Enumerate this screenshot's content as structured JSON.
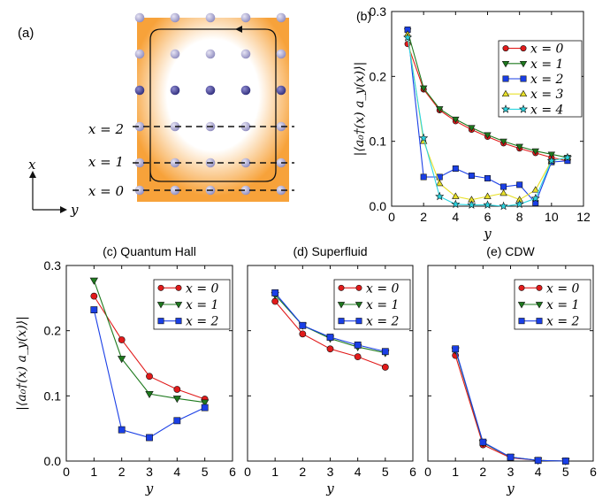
{
  "panel_a": {
    "label": "(a)",
    "row_labels": [
      "x = 2",
      "x = 1",
      "x = 0"
    ],
    "axis_x_label": "x",
    "axis_y_label": "y",
    "colors": {
      "background": "#F7A23A",
      "center": "#FFFFFF",
      "atom_light": "#9B98C7",
      "atom_dark": "#3A3886"
    }
  },
  "series_colors": [
    "#E11A1A",
    "#1E7A1E",
    "#1A3FE6",
    "#E8E029",
    "#2BD4E0"
  ],
  "legend_labels": [
    "x = 0",
    "x = 1",
    "x = 2",
    "x = 3",
    "x = 4"
  ],
  "chart_data": [
    {
      "id": "b",
      "type": "line",
      "panel_label": "(b)",
      "title": "",
      "xlabel": "y",
      "ylabel": "|⟨a₀†(x) a_y(x)⟩|",
      "xlim": [
        0,
        12
      ],
      "ylim": [
        0,
        0.3
      ],
      "xticks": [
        0,
        2,
        4,
        6,
        8,
        10,
        12
      ],
      "yticks": [
        0,
        0.1,
        0.2,
        0.3
      ],
      "ytick_labels": [
        "0.0",
        "0.1",
        "0.2",
        "0.3"
      ],
      "series": [
        {
          "name": "x = 0",
          "marker": "circle",
          "x": [
            1,
            2,
            3,
            4,
            5,
            6,
            7,
            8,
            9,
            10,
            11
          ],
          "y": [
            0.25,
            0.18,
            0.148,
            0.131,
            0.118,
            0.107,
            0.097,
            0.089,
            0.082,
            0.075,
            0.07
          ]
        },
        {
          "name": "x = 1",
          "marker": "tri-down",
          "x": [
            1,
            2,
            3,
            4,
            5,
            6,
            7,
            8,
            9,
            10,
            11
          ],
          "y": [
            0.27,
            0.182,
            0.15,
            0.134,
            0.121,
            0.11,
            0.1,
            0.092,
            0.085,
            0.08,
            0.075
          ]
        },
        {
          "name": "x = 2",
          "marker": "square",
          "x": [
            1,
            2,
            3,
            4,
            5,
            6,
            7,
            8,
            9,
            10,
            11
          ],
          "y": [
            0.272,
            0.045,
            0.045,
            0.058,
            0.047,
            0.043,
            0.03,
            0.033,
            0.005,
            0.068,
            0.07
          ]
        },
        {
          "name": "x = 3",
          "marker": "tri-up",
          "x": [
            1,
            2,
            3,
            4,
            5,
            6,
            7,
            8,
            9,
            10,
            11
          ],
          "y": [
            0.265,
            0.1,
            0.035,
            0.015,
            0.01,
            0.015,
            0.02,
            0.01,
            0.025,
            0.07,
            0.075
          ]
        },
        {
          "name": "x = 4",
          "marker": "star",
          "x": [
            1,
            2,
            3,
            4,
            5,
            6,
            7,
            8,
            9,
            10,
            11
          ],
          "y": [
            0.26,
            0.105,
            0.015,
            0.003,
            0.002,
            0.002,
            0.0,
            0.003,
            0.012,
            0.07,
            0.075
          ]
        }
      ]
    },
    {
      "id": "c",
      "type": "line",
      "title": "(c) Quantum Hall",
      "xlabel": "y",
      "ylabel": "|⟨a₀†(x) a_y(x)⟩|",
      "xlim": [
        0,
        6
      ],
      "ylim": [
        0,
        0.3
      ],
      "xticks": [
        0,
        1,
        2,
        3,
        4,
        5,
        6
      ],
      "yticks": [
        0,
        0.1,
        0.2,
        0.3
      ],
      "ytick_labels": [
        "0.0",
        "0.1",
        "0.2",
        "0.3"
      ],
      "series": [
        {
          "name": "x = 0",
          "marker": "circle",
          "x": [
            1,
            2,
            3,
            4,
            5
          ],
          "y": [
            0.253,
            0.186,
            0.13,
            0.11,
            0.095
          ]
        },
        {
          "name": "x = 1",
          "marker": "tri-down",
          "x": [
            1,
            2,
            3,
            4,
            5
          ],
          "y": [
            0.277,
            0.157,
            0.103,
            0.096,
            0.09
          ]
        },
        {
          "name": "x = 2",
          "marker": "square",
          "x": [
            1,
            2,
            3,
            4,
            5
          ],
          "y": [
            0.232,
            0.048,
            0.036,
            0.062,
            0.082
          ]
        }
      ]
    },
    {
      "id": "d",
      "type": "line",
      "title": "(d) Superfluid",
      "xlabel": "y",
      "ylabel": "",
      "xlim": [
        0,
        6
      ],
      "ylim": [
        0,
        0.3
      ],
      "xticks": [
        0,
        1,
        2,
        3,
        4,
        5,
        6
      ],
      "yticks": [
        0,
        0.1,
        0.2,
        0.3
      ],
      "ytick_labels": [
        "",
        "",
        "",
        ""
      ],
      "series": [
        {
          "name": "x = 0",
          "marker": "circle",
          "x": [
            1,
            2,
            3,
            4,
            5
          ],
          "y": [
            0.245,
            0.195,
            0.172,
            0.16,
            0.144
          ]
        },
        {
          "name": "x = 1",
          "marker": "tri-down",
          "x": [
            1,
            2,
            3,
            4,
            5
          ],
          "y": [
            0.255,
            0.208,
            0.188,
            0.175,
            0.166
          ]
        },
        {
          "name": "x = 2",
          "marker": "square",
          "x": [
            1,
            2,
            3,
            4,
            5
          ],
          "y": [
            0.258,
            0.208,
            0.19,
            0.178,
            0.168
          ]
        }
      ]
    },
    {
      "id": "e",
      "type": "line",
      "title": "(e) CDW",
      "xlabel": "y",
      "ylabel": "",
      "xlim": [
        0,
        6
      ],
      "ylim": [
        0,
        0.3
      ],
      "xticks": [
        0,
        1,
        2,
        3,
        4,
        5,
        6
      ],
      "yticks": [
        0,
        0.1,
        0.2,
        0.3
      ],
      "ytick_labels": [
        "",
        "",
        "",
        ""
      ],
      "series": [
        {
          "name": "x = 0",
          "marker": "circle",
          "x": [
            1,
            2,
            3,
            4,
            5
          ],
          "y": [
            0.162,
            0.025,
            0.005,
            0.001,
            0.0
          ]
        },
        {
          "name": "x = 1",
          "marker": "tri-down",
          "x": [
            1,
            2,
            3,
            4,
            5
          ],
          "y": [
            0.17,
            0.028,
            0.006,
            0.001,
            0.0
          ]
        },
        {
          "name": "x = 2",
          "marker": "square",
          "x": [
            1,
            2,
            3,
            4,
            5
          ],
          "y": [
            0.172,
            0.029,
            0.006,
            0.001,
            0.0
          ]
        }
      ]
    }
  ]
}
